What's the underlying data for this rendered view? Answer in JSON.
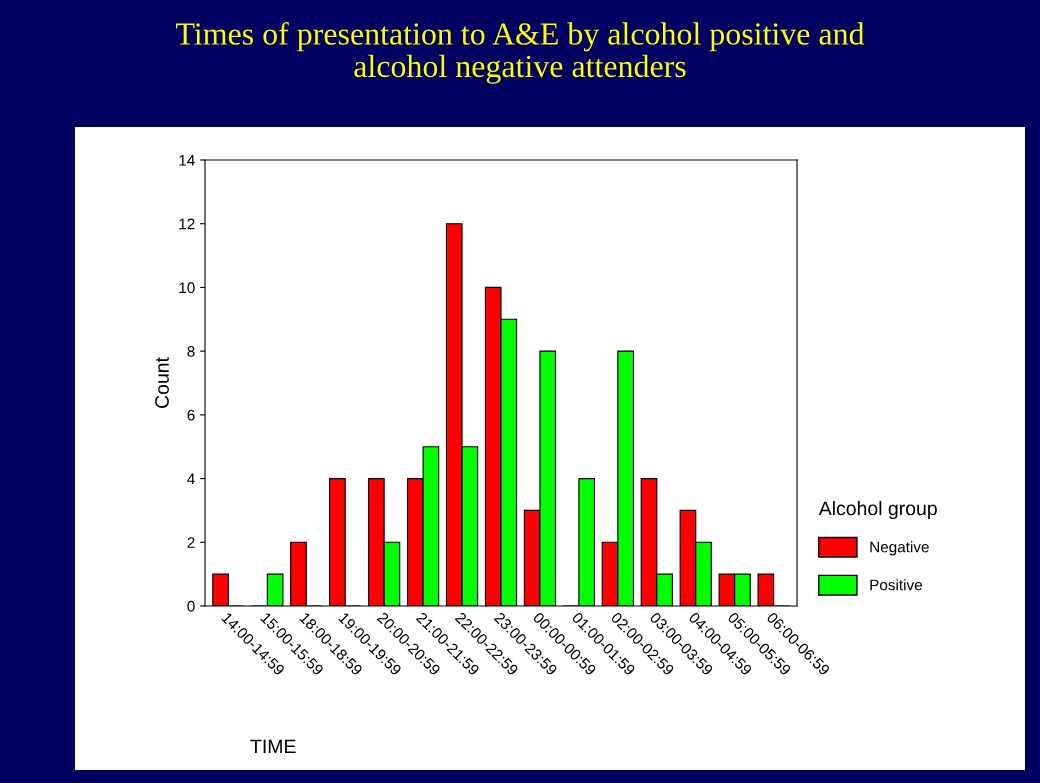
{
  "chart_data": {
    "type": "bar",
    "title": "Times of presentation to A&E by alcohol positive and\nalcohol negative attenders",
    "xlabel": "TIME",
    "ylabel": "Count",
    "legend_title": "Alcohol group",
    "categories": [
      "14:00-14:59",
      "15:00-15:59",
      "18:00-18:59",
      "19:00-19:59",
      "20:00-20:59",
      "21:00-21:59",
      "22:00-22:59",
      "23:00-23:59",
      "00:00-00:59",
      "01:00-01:59",
      "02:00-02:59",
      "03:00-03:59",
      "04:00-04:59",
      "05:00-05:59",
      "06:00-06:59"
    ],
    "series": [
      {
        "name": "Negative",
        "color": "#ff0000",
        "values": [
          1,
          0,
          2,
          4,
          4,
          4,
          12,
          10,
          3,
          0,
          2,
          4,
          3,
          1,
          1
        ]
      },
      {
        "name": "Positive",
        "color": "#00ff00",
        "values": [
          0,
          1,
          0,
          0,
          2,
          5,
          5,
          9,
          8,
          4,
          8,
          1,
          2,
          1,
          0
        ]
      }
    ],
    "ylim": [
      0,
      14
    ],
    "yticks": [
      0,
      2,
      4,
      6,
      8,
      10,
      12,
      14
    ],
    "grid": false,
    "legend": "right"
  }
}
